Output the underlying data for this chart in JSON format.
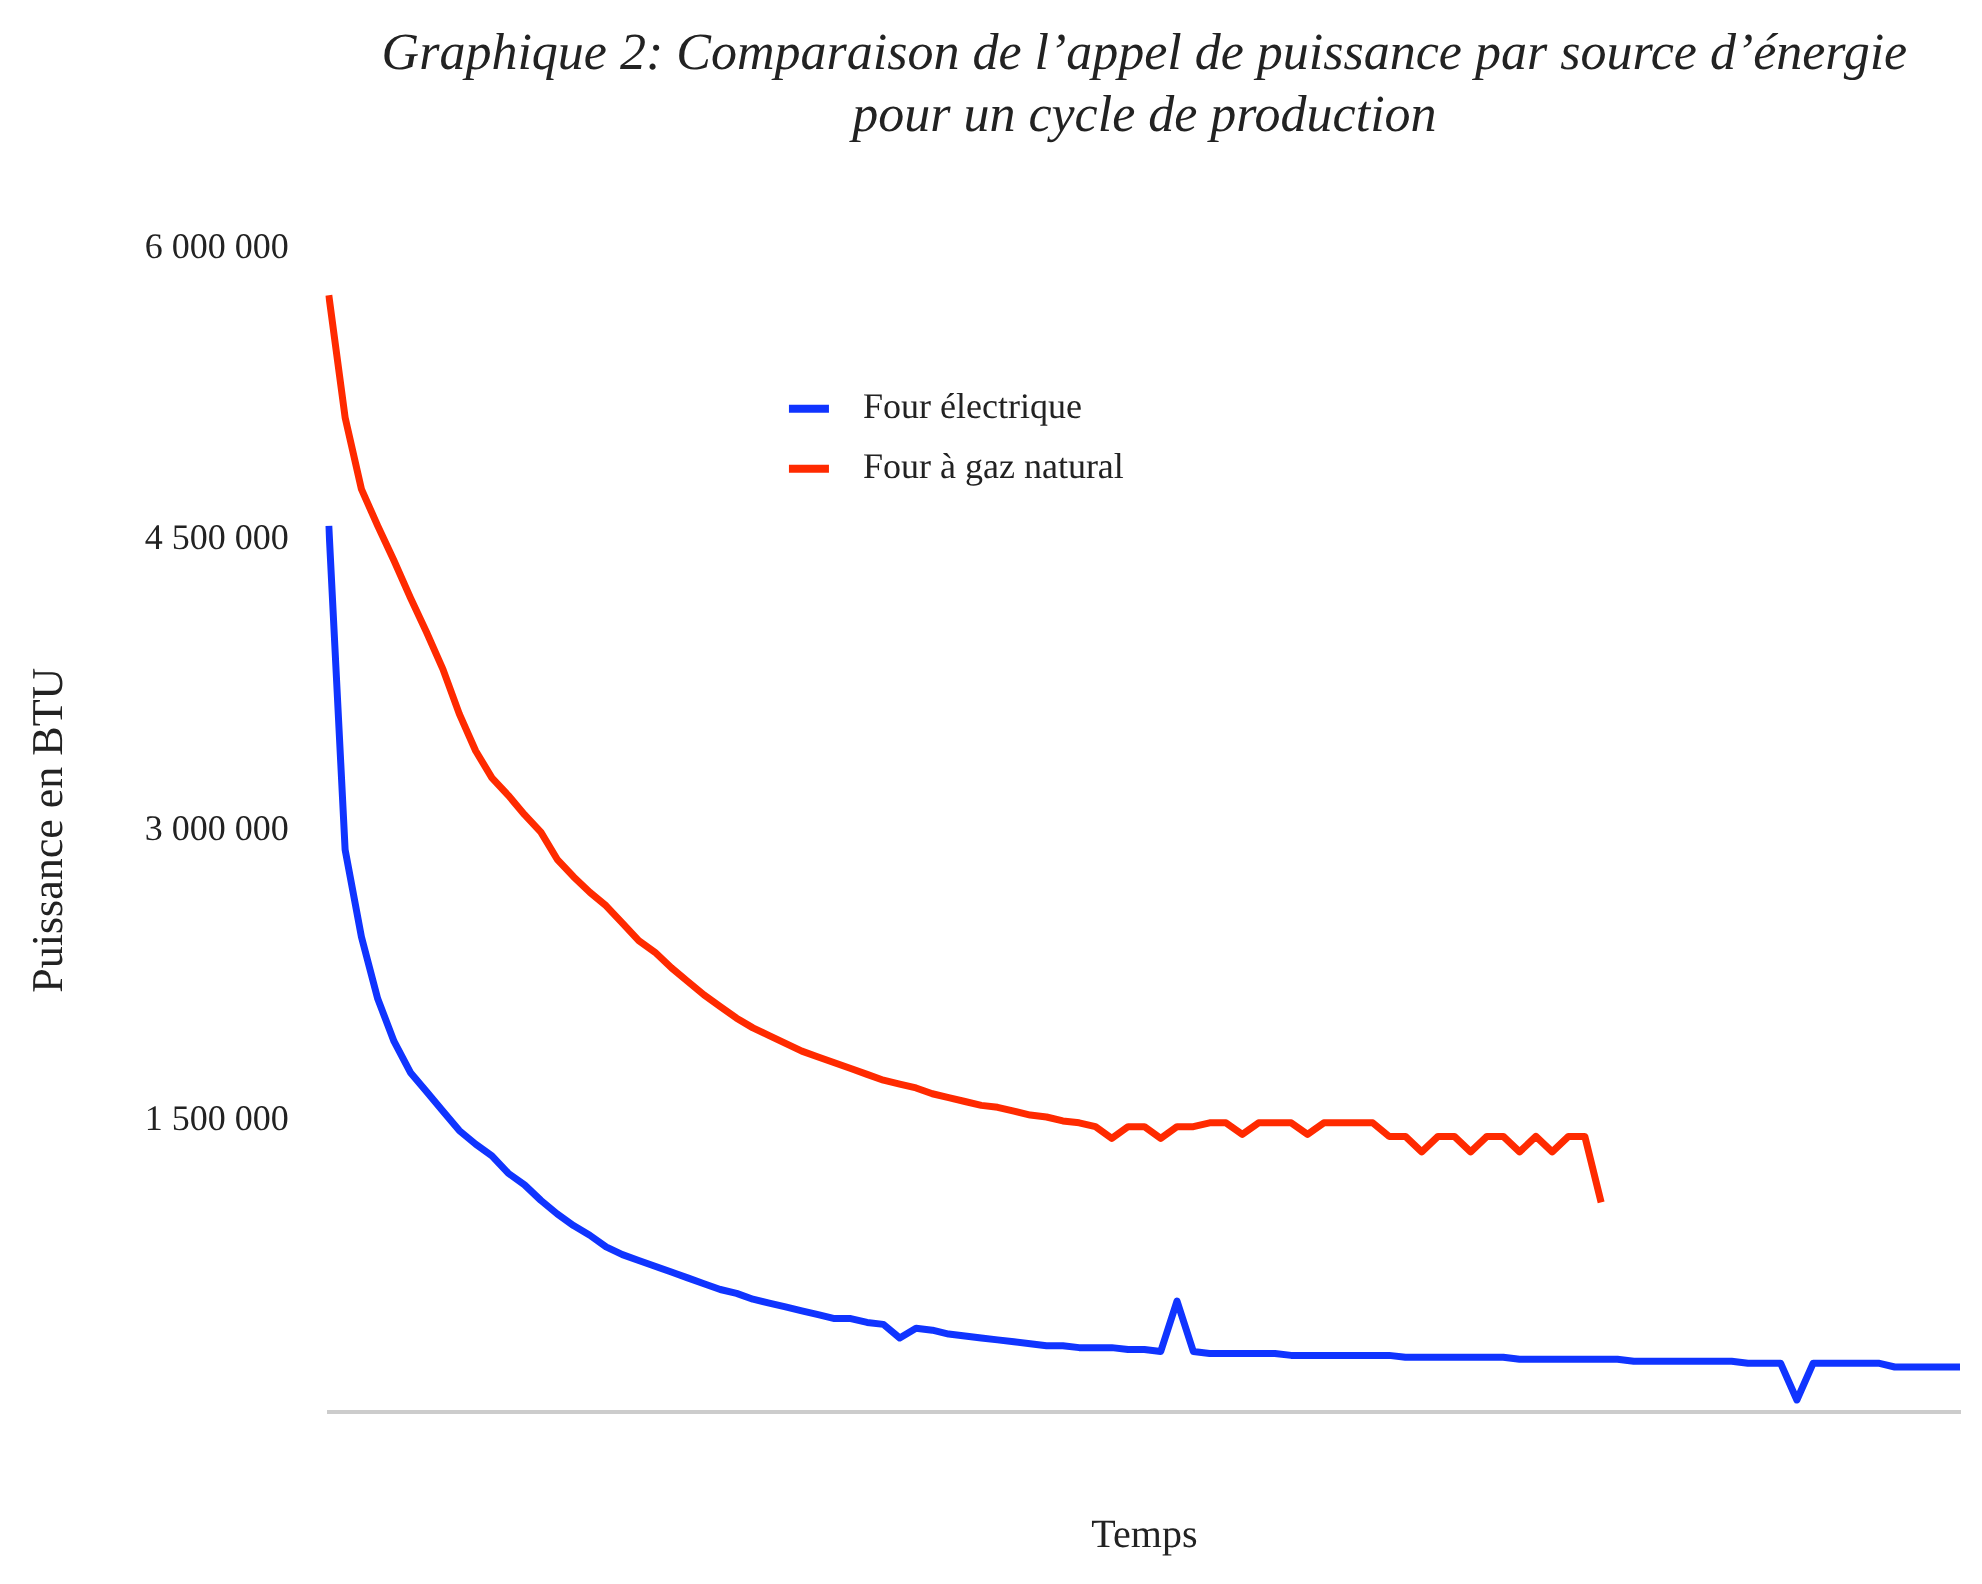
{
  "chart_data": {
    "type": "line",
    "title": "Graphique 2: Comparaison de l’appel de puissance par source d’énergie pour un cycle de production",
    "xlabel": "Temps",
    "ylabel": "Puissance en BTU",
    "categories": [
      null,
      null,
      null,
      null,
      null,
      null,
      null,
      null,
      null,
      null,
      null,
      null,
      null,
      null,
      null,
      null,
      null,
      null,
      null,
      null,
      null,
      null,
      null,
      null,
      null,
      null,
      null,
      null,
      null,
      null,
      null,
      null,
      null,
      null,
      null,
      null,
      null,
      null,
      null,
      null,
      null,
      null,
      null,
      null,
      null,
      null,
      null,
      null,
      null,
      null,
      null,
      null,
      null,
      null,
      null,
      null,
      null,
      null,
      null,
      null,
      null,
      null,
      null,
      null,
      null,
      null,
      null,
      null,
      null,
      null,
      null,
      null,
      null,
      null,
      null,
      null,
      null,
      null,
      null,
      null,
      null,
      null,
      null,
      null,
      null,
      null,
      null,
      null,
      null,
      null,
      null,
      null,
      null,
      null,
      null,
      null,
      null,
      null,
      null,
      null,
      null
    ],
    "series": [
      {
        "name": "Four électrique",
        "color": "#1034ff",
        "values": [
          4570000,
          2900000,
          2450000,
          2130000,
          1910000,
          1750000,
          1650000,
          1550000,
          1450000,
          1380000,
          1320000,
          1230000,
          1170000,
          1090000,
          1020000,
          960000,
          910000,
          850000,
          810000,
          780000,
          750000,
          720000,
          690000,
          660000,
          630000,
          610000,
          580000,
          560000,
          540000,
          520000,
          500000,
          480000,
          480000,
          460000,
          450000,
          380000,
          430000,
          420000,
          400000,
          390000,
          380000,
          370000,
          360000,
          350000,
          340000,
          340000,
          330000,
          330000,
          330000,
          320000,
          320000,
          310000,
          570000,
          310000,
          300000,
          300000,
          300000,
          300000,
          300000,
          290000,
          290000,
          290000,
          290000,
          290000,
          290000,
          290000,
          280000,
          280000,
          280000,
          280000,
          280000,
          280000,
          280000,
          270000,
          270000,
          270000,
          270000,
          270000,
          270000,
          270000,
          260000,
          260000,
          260000,
          260000,
          260000,
          260000,
          260000,
          250000,
          250000,
          250000,
          60000,
          250000,
          250000,
          250000,
          250000,
          250000,
          230000,
          230000,
          230000,
          230000,
          230000
        ]
      },
      {
        "name": "Four à gaz natural",
        "color": "#ff2a00",
        "values": [
          5760000,
          5130000,
          4760000,
          4570000,
          4390000,
          4200000,
          4020000,
          3830000,
          3600000,
          3410000,
          3270000,
          3180000,
          3080000,
          2990000,
          2850000,
          2760000,
          2680000,
          2610000,
          2520000,
          2430000,
          2370000,
          2290000,
          2220000,
          2150000,
          2090000,
          2030000,
          1980000,
          1940000,
          1900000,
          1860000,
          1830000,
          1800000,
          1770000,
          1740000,
          1710000,
          1690000,
          1670000,
          1640000,
          1620000,
          1600000,
          1580000,
          1570000,
          1550000,
          1530000,
          1520000,
          1500000,
          1490000,
          1470000,
          1410000,
          1470000,
          1470000,
          1410000,
          1470000,
          1470000,
          1490000,
          1490000,
          1430000,
          1490000,
          1490000,
          1490000,
          1430000,
          1490000,
          1490000,
          1490000,
          1490000,
          1420000,
          1420000,
          1340000,
          1420000,
          1420000,
          1340000,
          1420000,
          1420000,
          1340000,
          1420000,
          1340000,
          1420000,
          1420000,
          1080000,
          null,
          null,
          null,
          null,
          null,
          null,
          null,
          null,
          null,
          null,
          null,
          null,
          null,
          null,
          null,
          null,
          null,
          null,
          null,
          null,
          null,
          null
        ]
      }
    ],
    "ylim": [
      0,
      6000000
    ],
    "yticks": [
      {
        "value": 1500000,
        "label": "1 500 000"
      },
      {
        "value": 3000000,
        "label": "3 000 000"
      },
      {
        "value": 4500000,
        "label": "4 500 000"
      },
      {
        "value": 6000000,
        "label": "6 000 000"
      }
    ],
    "grid": false,
    "legend": "top",
    "marker": "none",
    "line_style": "solid"
  }
}
